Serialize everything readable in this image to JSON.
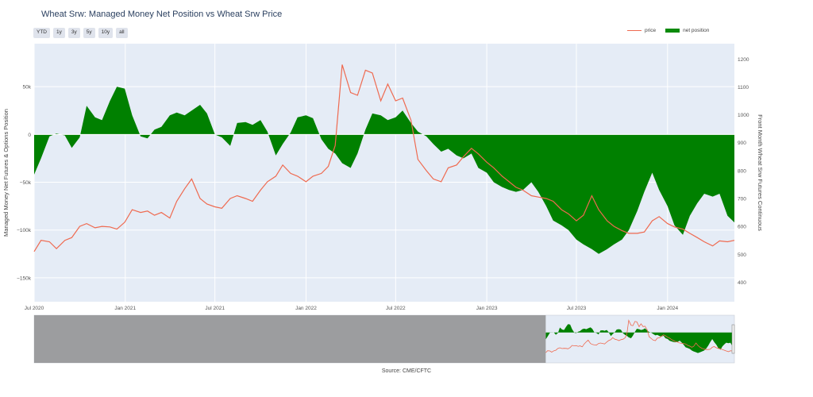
{
  "chart": {
    "title": "Wheat Srw: Managed Money Net Position vs Wheat Srw Price",
    "source": "Source: CME/CFTC",
    "range_buttons": [
      "YTD",
      "1y",
      "3y",
      "5y",
      "10y",
      "all"
    ],
    "legend": {
      "price": "price",
      "net": "net position"
    },
    "colors": {
      "price": "#ef6a50",
      "net": "#008000",
      "plot_bg": "#e5ecf6",
      "selector_mask": "#8f8f8f"
    }
  },
  "chart_data": {
    "type": "area",
    "title": "Wheat Srw: Managed Money Net Position vs Wheat Srw Price",
    "xlabel": "",
    "ylabel_left": "Managed Money Net Futures & Options Position",
    "ylabel_right": "Front Month Wheat Srw Futures Continuous",
    "x_tick_labels": [
      "Jul 2020",
      "Jan 2021",
      "Jul 2021",
      "Jan 2022",
      "Jul 2022",
      "Jan 2023",
      "Jul 2023",
      "Jan 2024"
    ],
    "x_range": [
      "2020-07-01",
      "2024-05-15"
    ],
    "y_left_range": [
      -175000,
      95000
    ],
    "y_left_ticks": [
      50000,
      0,
      -50000,
      -100000,
      -150000
    ],
    "y_left_tick_labels": [
      "50k",
      "0",
      "−50k",
      "−100k",
      "−150k"
    ],
    "y_right_range": [
      330,
      1255
    ],
    "y_right_ticks": [
      1200,
      1100,
      1000,
      900,
      800,
      700,
      600,
      500,
      400
    ],
    "grid": true,
    "legend_position": "top-right",
    "series": [
      {
        "name": "net position",
        "kind": "area",
        "axis": "left",
        "points": [
          [
            "2020-07-01",
            -42000
          ],
          [
            "2020-07-15",
            -25000
          ],
          [
            "2020-08-01",
            -2000
          ],
          [
            "2020-08-15",
            1000
          ],
          [
            "2020-09-01",
            -1000
          ],
          [
            "2020-09-15",
            -14000
          ],
          [
            "2020-10-01",
            -3000
          ],
          [
            "2020-10-15",
            30000
          ],
          [
            "2020-11-01",
            18000
          ],
          [
            "2020-11-15",
            15000
          ],
          [
            "2020-12-01",
            35000
          ],
          [
            "2020-12-15",
            50000
          ],
          [
            "2020-12-31",
            48000
          ],
          [
            "2021-01-15",
            20000
          ],
          [
            "2021-02-01",
            -2000
          ],
          [
            "2021-02-15",
            -4000
          ],
          [
            "2021-03-01",
            5000
          ],
          [
            "2021-03-15",
            8000
          ],
          [
            "2021-04-01",
            20000
          ],
          [
            "2021-04-15",
            23000
          ],
          [
            "2021-05-01",
            20000
          ],
          [
            "2021-05-15",
            25000
          ],
          [
            "2021-06-01",
            31000
          ],
          [
            "2021-06-15",
            22000
          ],
          [
            "2021-07-01",
            0
          ],
          [
            "2021-07-15",
            -3000
          ],
          [
            "2021-08-01",
            -12000
          ],
          [
            "2021-08-15",
            12000
          ],
          [
            "2021-09-01",
            13000
          ],
          [
            "2021-09-15",
            10000
          ],
          [
            "2021-10-01",
            15000
          ],
          [
            "2021-10-15",
            3000
          ],
          [
            "2021-11-01",
            -22000
          ],
          [
            "2021-11-15",
            -10000
          ],
          [
            "2021-12-01",
            2000
          ],
          [
            "2021-12-15",
            18000
          ],
          [
            "2022-01-01",
            20000
          ],
          [
            "2022-01-15",
            17000
          ],
          [
            "2022-02-01",
            -5000
          ],
          [
            "2022-02-15",
            -15000
          ],
          [
            "2022-03-01",
            -20000
          ],
          [
            "2022-03-15",
            -30000
          ],
          [
            "2022-04-01",
            -35000
          ],
          [
            "2022-04-15",
            -20000
          ],
          [
            "2022-05-01",
            5000
          ],
          [
            "2022-05-15",
            22000
          ],
          [
            "2022-06-01",
            20000
          ],
          [
            "2022-06-15",
            15000
          ],
          [
            "2022-07-01",
            18000
          ],
          [
            "2022-07-15",
            25000
          ],
          [
            "2022-08-01",
            12000
          ],
          [
            "2022-08-15",
            3000
          ],
          [
            "2022-09-01",
            -2000
          ],
          [
            "2022-09-15",
            -10000
          ],
          [
            "2022-10-01",
            -18000
          ],
          [
            "2022-10-15",
            -15000
          ],
          [
            "2022-11-01",
            -22000
          ],
          [
            "2022-11-15",
            -25000
          ],
          [
            "2022-12-01",
            -20000
          ],
          [
            "2022-12-15",
            -35000
          ],
          [
            "2023-01-01",
            -40000
          ],
          [
            "2023-01-15",
            -50000
          ],
          [
            "2023-02-01",
            -55000
          ],
          [
            "2023-02-15",
            -58000
          ],
          [
            "2023-03-01",
            -60000
          ],
          [
            "2023-03-15",
            -58000
          ],
          [
            "2023-04-01",
            -50000
          ],
          [
            "2023-04-15",
            -60000
          ],
          [
            "2023-05-01",
            -75000
          ],
          [
            "2023-05-15",
            -90000
          ],
          [
            "2023-06-01",
            -95000
          ],
          [
            "2023-06-15",
            -100000
          ],
          [
            "2023-07-01",
            -110000
          ],
          [
            "2023-07-15",
            -115000
          ],
          [
            "2023-08-01",
            -120000
          ],
          [
            "2023-08-15",
            -125000
          ],
          [
            "2023-09-01",
            -120000
          ],
          [
            "2023-09-15",
            -115000
          ],
          [
            "2023-10-01",
            -110000
          ],
          [
            "2023-10-15",
            -100000
          ],
          [
            "2023-11-01",
            -80000
          ],
          [
            "2023-11-15",
            -60000
          ],
          [
            "2023-12-01",
            -40000
          ],
          [
            "2023-12-15",
            -58000
          ],
          [
            "2024-01-01",
            -75000
          ],
          [
            "2024-01-15",
            -95000
          ],
          [
            "2024-02-01",
            -105000
          ],
          [
            "2024-02-15",
            -85000
          ],
          [
            "2024-03-01",
            -72000
          ],
          [
            "2024-03-15",
            -62000
          ],
          [
            "2024-04-01",
            -65000
          ],
          [
            "2024-04-15",
            -62000
          ],
          [
            "2024-05-01",
            -85000
          ],
          [
            "2024-05-15",
            -92000
          ]
        ]
      },
      {
        "name": "price",
        "kind": "line",
        "axis": "right",
        "points": [
          [
            "2020-07-01",
            510
          ],
          [
            "2020-07-15",
            550
          ],
          [
            "2020-08-01",
            545
          ],
          [
            "2020-08-15",
            520
          ],
          [
            "2020-09-01",
            550
          ],
          [
            "2020-09-15",
            560
          ],
          [
            "2020-10-01",
            600
          ],
          [
            "2020-10-15",
            610
          ],
          [
            "2020-11-01",
            595
          ],
          [
            "2020-11-15",
            600
          ],
          [
            "2020-12-01",
            598
          ],
          [
            "2020-12-15",
            590
          ],
          [
            "2020-12-31",
            615
          ],
          [
            "2021-01-15",
            660
          ],
          [
            "2021-02-01",
            650
          ],
          [
            "2021-02-15",
            655
          ],
          [
            "2021-03-01",
            640
          ],
          [
            "2021-03-15",
            650
          ],
          [
            "2021-04-01",
            630
          ],
          [
            "2021-04-15",
            690
          ],
          [
            "2021-05-01",
            735
          ],
          [
            "2021-05-15",
            770
          ],
          [
            "2021-06-01",
            700
          ],
          [
            "2021-06-15",
            680
          ],
          [
            "2021-07-01",
            670
          ],
          [
            "2021-07-15",
            665
          ],
          [
            "2021-08-01",
            700
          ],
          [
            "2021-08-15",
            710
          ],
          [
            "2021-09-01",
            700
          ],
          [
            "2021-09-15",
            690
          ],
          [
            "2021-10-01",
            730
          ],
          [
            "2021-10-15",
            760
          ],
          [
            "2021-11-01",
            780
          ],
          [
            "2021-11-15",
            820
          ],
          [
            "2021-12-01",
            790
          ],
          [
            "2021-12-15",
            780
          ],
          [
            "2022-01-01",
            760
          ],
          [
            "2022-01-15",
            780
          ],
          [
            "2022-02-01",
            790
          ],
          [
            "2022-02-15",
            815
          ],
          [
            "2022-03-01",
            890
          ],
          [
            "2022-03-15",
            1180
          ],
          [
            "2022-04-01",
            1080
          ],
          [
            "2022-04-15",
            1070
          ],
          [
            "2022-05-01",
            1160
          ],
          [
            "2022-05-15",
            1150
          ],
          [
            "2022-06-01",
            1050
          ],
          [
            "2022-06-15",
            1110
          ],
          [
            "2022-07-01",
            1050
          ],
          [
            "2022-07-15",
            1060
          ],
          [
            "2022-08-01",
            980
          ],
          [
            "2022-08-15",
            840
          ],
          [
            "2022-09-01",
            800
          ],
          [
            "2022-09-15",
            770
          ],
          [
            "2022-10-01",
            760
          ],
          [
            "2022-10-15",
            810
          ],
          [
            "2022-11-01",
            820
          ],
          [
            "2022-11-15",
            850
          ],
          [
            "2022-12-01",
            880
          ],
          [
            "2022-12-15",
            860
          ],
          [
            "2023-01-01",
            830
          ],
          [
            "2023-01-15",
            810
          ],
          [
            "2023-02-01",
            780
          ],
          [
            "2023-02-15",
            760
          ],
          [
            "2023-03-01",
            740
          ],
          [
            "2023-03-15",
            730
          ],
          [
            "2023-04-01",
            710
          ],
          [
            "2023-04-15",
            705
          ],
          [
            "2023-05-01",
            700
          ],
          [
            "2023-05-15",
            690
          ],
          [
            "2023-06-01",
            660
          ],
          [
            "2023-06-15",
            645
          ],
          [
            "2023-07-01",
            620
          ],
          [
            "2023-07-15",
            640
          ],
          [
            "2023-08-01",
            710
          ],
          [
            "2023-08-15",
            660
          ],
          [
            "2023-09-01",
            620
          ],
          [
            "2023-09-15",
            600
          ],
          [
            "2023-10-01",
            585
          ],
          [
            "2023-10-15",
            575
          ],
          [
            "2023-11-01",
            575
          ],
          [
            "2023-11-15",
            580
          ],
          [
            "2023-12-01",
            620
          ],
          [
            "2023-12-15",
            635
          ],
          [
            "2024-01-01",
            610
          ],
          [
            "2024-01-15",
            598
          ],
          [
            "2024-02-01",
            590
          ],
          [
            "2024-02-15",
            575
          ],
          [
            "2024-03-01",
            560
          ],
          [
            "2024-03-15",
            545
          ],
          [
            "2024-04-01",
            530
          ],
          [
            "2024-04-15",
            548
          ],
          [
            "2024-05-01",
            545
          ],
          [
            "2024-05-15",
            550
          ]
        ]
      }
    ],
    "selector": {
      "x_range": [
        "2010-01-01",
        "2024-05-15"
      ],
      "selected_start": "2020-07-01"
    }
  }
}
